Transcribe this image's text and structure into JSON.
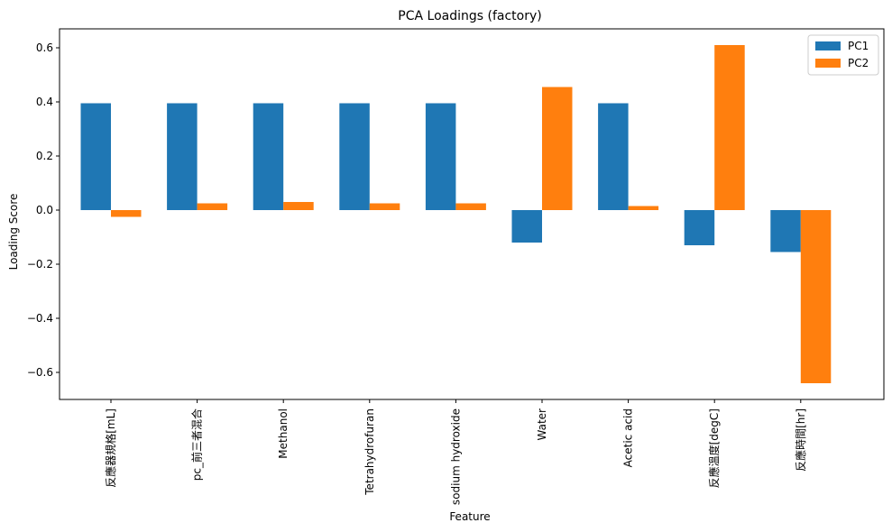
{
  "chart_data": {
    "type": "bar",
    "title": "PCA Loadings (factory)",
    "xlabel": "Feature",
    "ylabel": "Loading Score",
    "categories": [
      "反應器規格[mL]",
      "pc_前三者混合",
      "Methanol",
      "Tetrahydrofuran",
      "sodium hydroxide",
      "Water",
      "Acetic acid",
      "反應溫度[degC]",
      "反應時間[hr]"
    ],
    "series": [
      {
        "name": "PC1",
        "color": "#1f77b4",
        "values": [
          0.395,
          0.395,
          0.395,
          0.395,
          0.395,
          -0.12,
          0.395,
          -0.13,
          -0.155
        ]
      },
      {
        "name": "PC2",
        "color": "#ff7f0e",
        "values": [
          -0.025,
          0.025,
          0.03,
          0.025,
          0.025,
          0.455,
          0.015,
          0.61,
          -0.64
        ]
      }
    ],
    "ylim": [
      -0.7,
      0.67
    ],
    "yticks": [
      -0.6,
      -0.4,
      -0.2,
      0.0,
      0.2,
      0.4,
      0.6
    ],
    "ytick_labels": [
      "−0.6",
      "−0.4",
      "−0.2",
      "0.0",
      "0.2",
      "0.4",
      "0.6"
    ],
    "grid": false,
    "legend_position": "top-right"
  }
}
